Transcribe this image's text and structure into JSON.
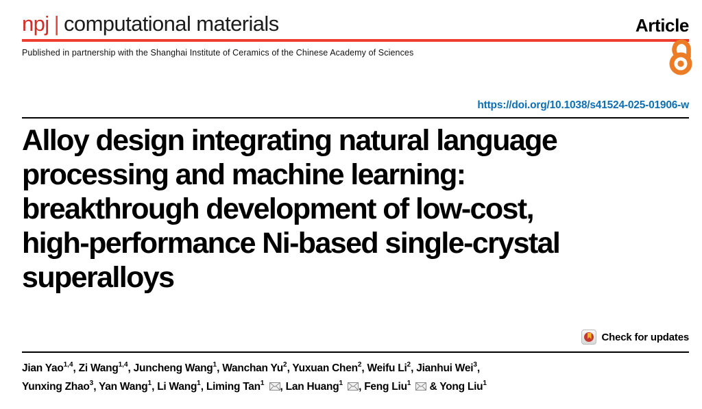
{
  "masthead": {
    "brand_prefix": "npj",
    "brand_separator": "|",
    "brand_name": "computational materials",
    "article_type": "Article",
    "partnership": "Published in partnership with the Shanghai Institute of Ceramics of the Chinese Academy of Sciences"
  },
  "doi": {
    "url_text": "https://doi.org/10.1038/s41524-025-01906-w"
  },
  "title": {
    "full": "Alloy design integrating natural language processing and machine learning: breakthrough development of low-cost, high-performance Ni-based single-crystal superalloys",
    "lines": [
      "Alloy design integrating natural language",
      "processing and machine learning:",
      "breakthrough development of low-cost,",
      "high-performance Ni-based single-crystal",
      "superalloys"
    ]
  },
  "check_for_updates": {
    "label": "Check for updates"
  },
  "authors": {
    "line1": [
      {
        "name": "Jian Yao",
        "sup": "1,4",
        "mail": false
      },
      {
        "name": "Zi Wang",
        "sup": "1,4",
        "mail": false
      },
      {
        "name": "Juncheng Wang",
        "sup": "1",
        "mail": false
      },
      {
        "name": "Wanchan Yu",
        "sup": "2",
        "mail": false
      },
      {
        "name": "Yuxuan Chen",
        "sup": "2",
        "mail": false
      },
      {
        "name": "Weifu Li",
        "sup": "2",
        "mail": false
      },
      {
        "name": "Jianhui Wei",
        "sup": "3",
        "mail": false
      }
    ],
    "line2": [
      {
        "name": "Yunxing Zhao",
        "sup": "3",
        "mail": false
      },
      {
        "name": "Yan Wang",
        "sup": "1",
        "mail": false
      },
      {
        "name": "Li Wang",
        "sup": "1",
        "mail": false
      },
      {
        "name": "Liming Tan",
        "sup": "1",
        "mail": true
      },
      {
        "name": "Lan Huang",
        "sup": "1",
        "mail": true
      },
      {
        "name": "Feng Liu",
        "sup": "1",
        "mail": true
      },
      {
        "name": "Yong Liu",
        "sup": "1",
        "mail": false
      }
    ],
    "line1_trailing": ",",
    "last_author_joiner": "&"
  },
  "icons": {
    "open_access": "open-access-padlock",
    "crossmark": "crossmark-bookmark",
    "mail": "envelope"
  },
  "colors": {
    "brand_red": "#d22d26",
    "rule_red": "#ee3d2e",
    "open_access_orange": "#ed7c26",
    "link_blue": "#0d6fb3",
    "text_black": "#000000"
  }
}
